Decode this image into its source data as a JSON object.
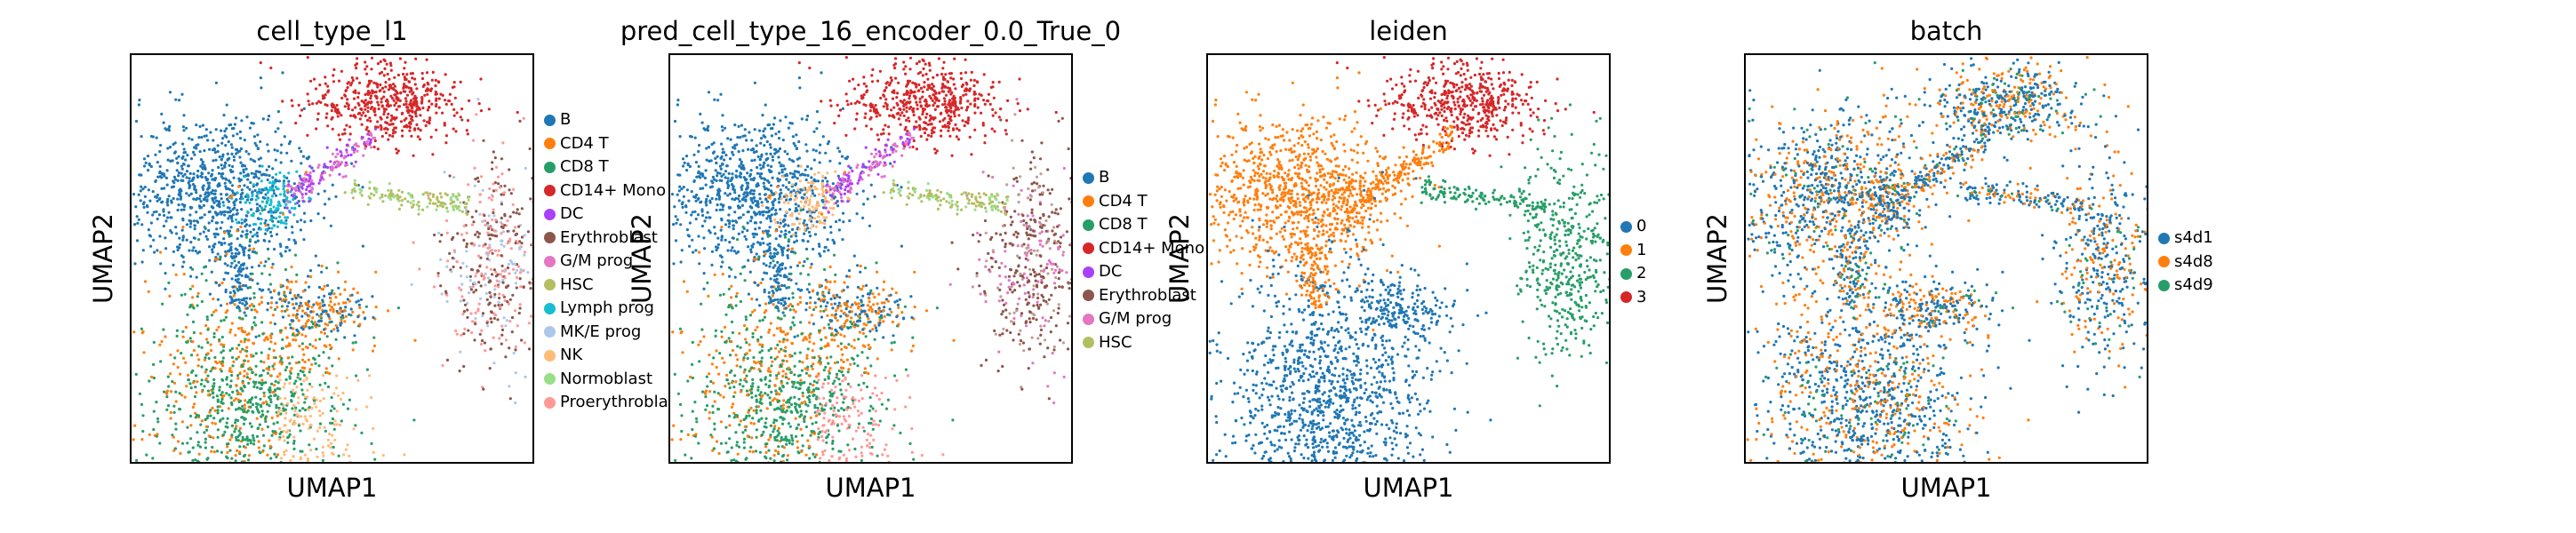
{
  "chart_data": [
    {
      "type": "scatter",
      "title": "cell_type_l1",
      "xlabel": "UMAP1",
      "ylabel": "UMAP2",
      "legend_position": "right",
      "legend": [
        {
          "name": "B",
          "color": "#1f77b4"
        },
        {
          "name": "CD4 T",
          "color": "#ff7f0e"
        },
        {
          "name": "CD8 T",
          "color": "#279e68"
        },
        {
          "name": "CD14+ Mono",
          "color": "#d62728"
        },
        {
          "name": "DC",
          "color": "#aa40fc"
        },
        {
          "name": "Erythroblast",
          "color": "#8c564b"
        },
        {
          "name": "G/M prog",
          "color": "#e377c2"
        },
        {
          "name": "HSC",
          "color": "#b5bd61"
        },
        {
          "name": "Lymph prog",
          "color": "#17becf"
        },
        {
          "name": "MK/E prog",
          "color": "#aec7e8"
        },
        {
          "name": "NK",
          "color": "#ffbb78"
        },
        {
          "name": "Normoblast",
          "color": "#98df8a"
        },
        {
          "name": "Proerythroblast",
          "color": "#ff9896"
        }
      ]
    },
    {
      "type": "scatter",
      "title": "pred_cell_type_16_encoder_0.0_True_0",
      "xlabel": "UMAP1",
      "ylabel": "UMAP2",
      "legend_position": "right",
      "legend": [
        {
          "name": "B",
          "color": "#1f77b4"
        },
        {
          "name": "CD4 T",
          "color": "#ff7f0e"
        },
        {
          "name": "CD8 T",
          "color": "#279e68"
        },
        {
          "name": "CD14+ Mono",
          "color": "#d62728"
        },
        {
          "name": "DC",
          "color": "#aa40fc"
        },
        {
          "name": "Erythroblast",
          "color": "#8c564b"
        },
        {
          "name": "G/M prog",
          "color": "#e377c2"
        },
        {
          "name": "HSC",
          "color": "#b5bd61"
        }
      ]
    },
    {
      "type": "scatter",
      "title": "leiden",
      "xlabel": "UMAP1",
      "ylabel": "UMAP2",
      "legend_position": "right",
      "legend": [
        {
          "name": "0",
          "color": "#1f77b4"
        },
        {
          "name": "1",
          "color": "#ff7f0e"
        },
        {
          "name": "2",
          "color": "#279e68"
        },
        {
          "name": "3",
          "color": "#d62728"
        }
      ]
    },
    {
      "type": "scatter",
      "title": "batch",
      "xlabel": "UMAP1",
      "ylabel": "UMAP2",
      "legend_position": "right",
      "legend": [
        {
          "name": "s4d1",
          "color": "#1f77b4"
        },
        {
          "name": "s4d8",
          "color": "#ff7f0e"
        },
        {
          "name": "s4d9",
          "color": "#279e68"
        }
      ]
    }
  ]
}
